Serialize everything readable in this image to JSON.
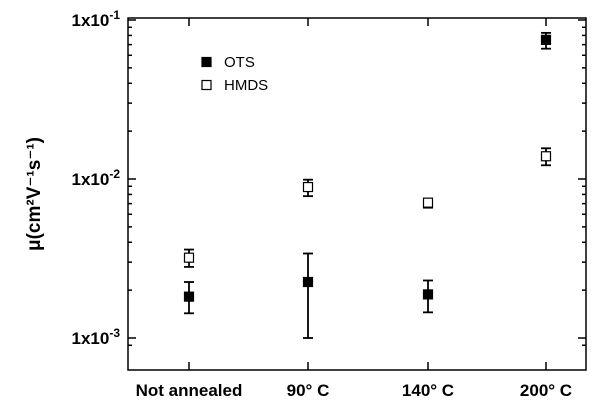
{
  "chart_data": {
    "type": "scatter",
    "title": "",
    "xlabel": "",
    "ylabel": "μ(cm²V⁻¹s⁻¹)",
    "yscale": "log",
    "ylim": [
      0.00085,
      0.1
    ],
    "y_ticks": [
      {
        "value": 0.001,
        "mantissa": "1x10",
        "exp": "-3"
      },
      {
        "value": 0.01,
        "mantissa": "1x10",
        "exp": "-2"
      },
      {
        "value": 0.1,
        "mantissa": "1x10",
        "exp": "-1"
      }
    ],
    "categories": [
      "Not annealed",
      "90° C",
      "140° C",
      "200° C"
    ],
    "grid": false,
    "legend_position": "top-left",
    "series": [
      {
        "name": "OTS",
        "marker": "filled-square",
        "color": "#000000",
        "values": [
          0.00182,
          0.00225,
          0.00188,
          0.075
        ],
        "err_low": [
          0.00143,
          0.001,
          0.00145,
          0.066
        ],
        "err_high": [
          0.00225,
          0.0034,
          0.0023,
          0.083
        ]
      },
      {
        "name": "HMDS",
        "marker": "open-square",
        "color": "#000000",
        "values": [
          0.0032,
          0.0089,
          0.0071,
          0.0139
        ],
        "err_low": [
          0.0028,
          0.0078,
          0.0066,
          0.0122
        ],
        "err_high": [
          0.0036,
          0.0099,
          0.0075,
          0.0156
        ]
      }
    ]
  }
}
